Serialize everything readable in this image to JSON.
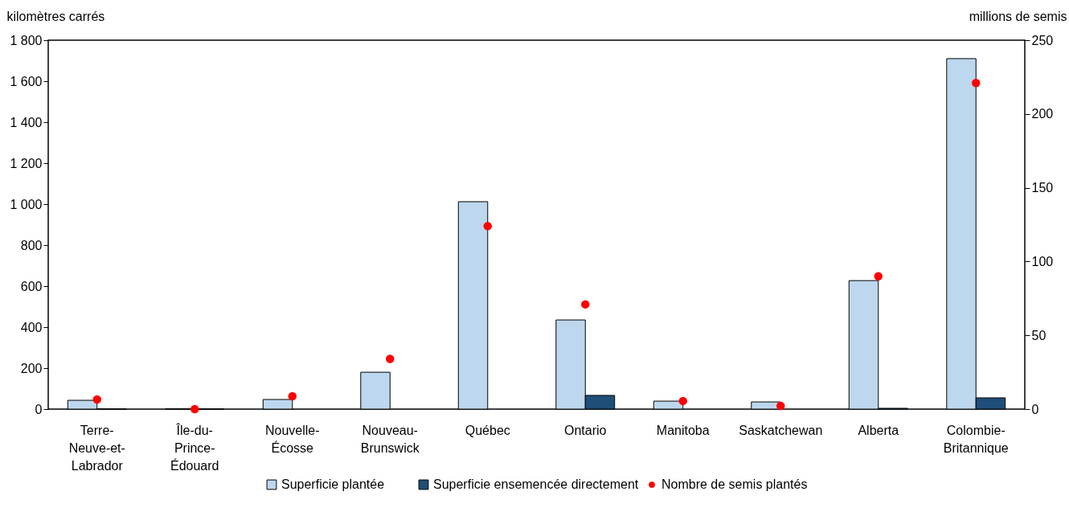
{
  "chart_data": {
    "type": "bar",
    "ylabel": "kilomètres carrés",
    "y2label": "millions de semis",
    "categories": [
      "Terre-Neuve-et-Labrador",
      "Île-du-Prince-Édouard",
      "Nouvelle-Écosse",
      "Nouveau-Brunswick",
      "Québec",
      "Ontario",
      "Manitoba",
      "Saskatchewan",
      "Alberta",
      "Colombie-Britannique"
    ],
    "series": [
      {
        "name": "Superficie plantée",
        "color": "#bdd7ee",
        "values": [
          43,
          2,
          47,
          180,
          1012,
          435,
          39,
          35,
          627,
          1710
        ]
      },
      {
        "name": "Superficie ensemencée directement",
        "color": "#1f4e79",
        "values": [
          1,
          1,
          null,
          null,
          null,
          67,
          null,
          null,
          4,
          55
        ]
      },
      {
        "name": "Nombre de semis plantés",
        "color": "#ff0000",
        "type": "scatter",
        "axis": "y2",
        "values": [
          6.5,
          0,
          8.7,
          34,
          124,
          71,
          5.5,
          2.2,
          90,
          221
        ]
      }
    ],
    "ylim": [
      0,
      1800
    ],
    "yticks": [
      0,
      200,
      400,
      600,
      800,
      {
        "value": 1000,
        "label": "1 000"
      },
      {
        "value": 1200,
        "label": "1 200"
      },
      {
        "value": 1400,
        "label": "1 400"
      },
      {
        "value": 1600,
        "label": "1 600"
      },
      {
        "value": 1800,
        "label": "1 800"
      }
    ],
    "y2lim": [
      0,
      250
    ],
    "y2ticks": [
      0,
      50,
      100,
      150,
      200,
      250
    ],
    "legend": "bottom",
    "marker": "circle",
    "grid": false
  }
}
